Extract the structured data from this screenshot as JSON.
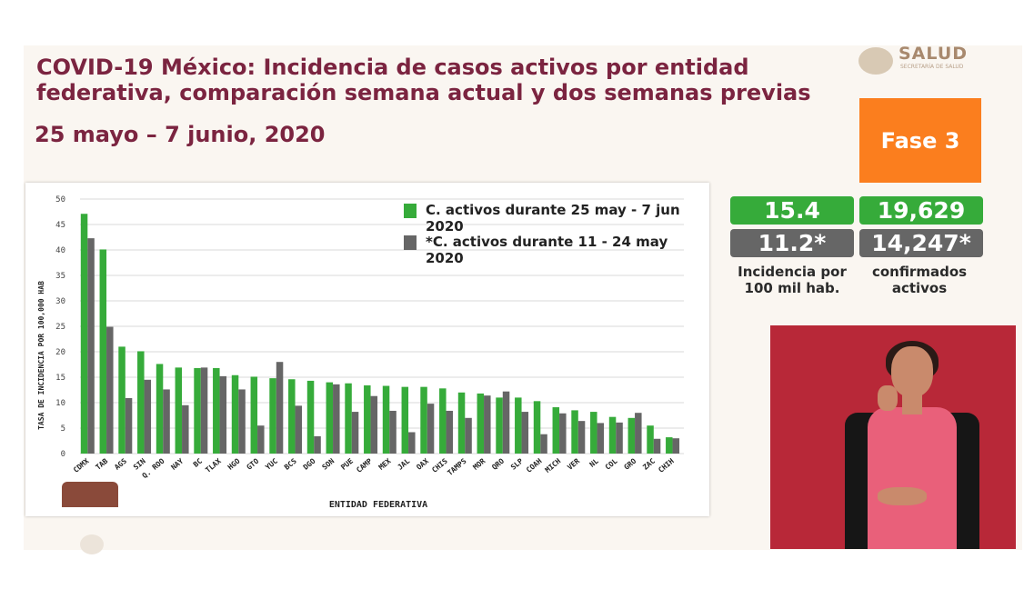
{
  "title": "COVID-19 México: Incidencia de casos activos por entidad federativa, comparación semana actual y dos semanas previas",
  "dates": "25 mayo – 7 junio, 2020",
  "logo": {
    "name": "SALUD",
    "subtitle": "SECRETARÍA DE SALUD"
  },
  "phase": "Fase 3",
  "stats": {
    "incidence_current": "15.4",
    "incidence_prev": "11.2*",
    "incidence_label_1": "Incidencia por",
    "incidence_label_2": "100 mil hab.",
    "confirmed_current": "19,629",
    "confirmed_prev": "14,247*",
    "confirmed_label_1": "confirmados",
    "confirmed_label_2": "activos"
  },
  "colors": {
    "current": "#36ab3a",
    "previous": "#666666",
    "title": "#7b2440",
    "phase": "#fb7e1e"
  },
  "chart_data": {
    "type": "bar",
    "title": "",
    "xlabel": "ENTIDAD FEDERATIVA",
    "ylabel": "TASA DE INCIDENCIA POR 100,000 HAB",
    "ylim": [
      0,
      50
    ],
    "yticks": [
      0,
      5,
      10,
      15,
      20,
      25,
      30,
      35,
      40,
      45,
      50
    ],
    "categories": [
      "CDMX",
      "TAB",
      "AGS",
      "SIN",
      "Q. ROO",
      "NAY",
      "BC",
      "TLAX",
      "HGO",
      "GTO",
      "YUC",
      "BCS",
      "DGO",
      "SON",
      "PUE",
      "CAMP",
      "MEX",
      "JAL",
      "OAX",
      "CHIS",
      "TAMPS",
      "MOR",
      "QRO",
      "SLP",
      "COAH",
      "MICH",
      "VER",
      "NL",
      "COL",
      "GRO",
      "ZAC",
      "CHIH"
    ],
    "series": [
      {
        "name": "C. activos durante 25 may - 7 jun 2020",
        "values": [
          47.1,
          40.1,
          21.0,
          20.1,
          17.6,
          16.9,
          16.8,
          16.8,
          15.4,
          15.1,
          14.8,
          14.6,
          14.3,
          14.0,
          13.8,
          13.4,
          13.3,
          13.1,
          13.1,
          12.8,
          12.0,
          11.8,
          11.0,
          11.0,
          10.3,
          9.1,
          8.5,
          8.2,
          7.2,
          7.0,
          5.5,
          3.2
        ]
      },
      {
        "name": "*C. activos durante  11 - 24 may 2020",
        "values": [
          42.3,
          24.9,
          10.9,
          14.5,
          12.6,
          9.5,
          16.9,
          15.2,
          12.6,
          5.5,
          18.0,
          9.4,
          3.4,
          13.6,
          8.2,
          11.3,
          8.4,
          4.2,
          9.8,
          8.4,
          7.0,
          11.4,
          12.2,
          8.2,
          3.8,
          7.9,
          6.4,
          6.0,
          6.1,
          8.0,
          2.9,
          3.0
        ]
      }
    ]
  }
}
